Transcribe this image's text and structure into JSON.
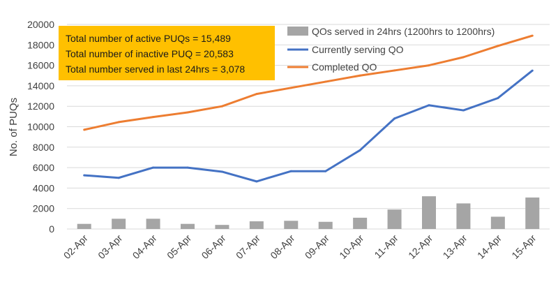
{
  "summary_box": {
    "lines": [
      "Total number of active PUQs = 15,489",
      "Total number of inactive PUQ = 20,583",
      "Total number served in last 24hrs = 3,078"
    ],
    "background": "#FFC000"
  },
  "chart_data": {
    "type": "bar",
    "title": "",
    "xlabel": "",
    "ylabel": "No. of PUQs",
    "ylim": [
      0,
      20000
    ],
    "yticks": [
      0,
      2000,
      4000,
      6000,
      8000,
      10000,
      12000,
      14000,
      16000,
      18000,
      20000
    ],
    "grid": true,
    "legend_position": "top-right",
    "categories": [
      "02-Apr",
      "03-Apr",
      "04-Apr",
      "05-Apr",
      "06-Apr",
      "07-Apr",
      "08-Apr",
      "09-Apr",
      "10-Apr",
      "11-Apr",
      "12-Apr",
      "13-Apr",
      "14-Apr",
      "15-Apr"
    ],
    "series": [
      {
        "name": "QOs served in 24hrs (1200hrs to 1200hrs)",
        "type": "bar",
        "color": "#A5A5A5",
        "values": [
          500,
          1000,
          1000,
          500,
          400,
          750,
          800,
          700,
          1100,
          1900,
          3200,
          2500,
          1200,
          3078
        ]
      },
      {
        "name": "Currently serving QO",
        "type": "line",
        "color": "#4472C4",
        "values": [
          5250,
          5000,
          6000,
          6000,
          5600,
          4650,
          5650,
          5650,
          7700,
          10800,
          12100,
          11600,
          12800,
          15489
        ]
      },
      {
        "name": "Completed QO",
        "type": "line",
        "color": "#ED7D31",
        "values": [
          9700,
          10450,
          10950,
          11400,
          12000,
          13200,
          13800,
          14400,
          15000,
          15500,
          16000,
          16800,
          17900,
          18900
        ]
      }
    ]
  }
}
